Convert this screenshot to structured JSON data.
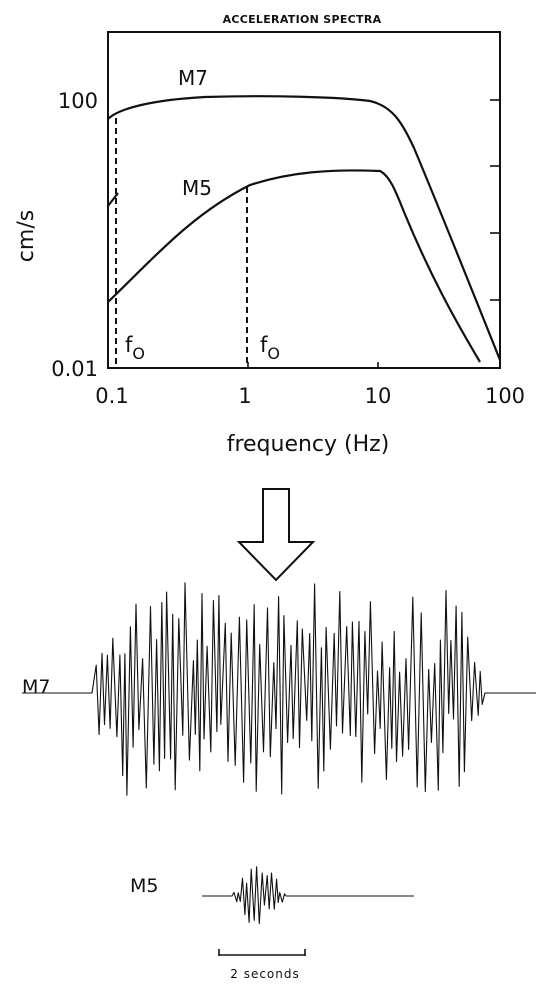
{
  "spectra": {
    "title": "ACCELERATION SPECTRA",
    "y_axis_label": "cm/s",
    "x_axis_label": "frequency (Hz)",
    "y_ticks": [
      "100",
      "0.01"
    ],
    "x_ticks": [
      "0.1",
      "1",
      "10",
      "100"
    ],
    "corner_label": "f",
    "corner_subscript": "O",
    "curves": [
      {
        "label": "M7",
        "corner_frequency_hz": 0.11
      },
      {
        "label": "M5",
        "corner_frequency_hz": 1.1
      }
    ]
  },
  "seismograms": {
    "traces": [
      {
        "label": "M7"
      },
      {
        "label": "M5"
      }
    ],
    "scale_bar_label": "2 seconds"
  }
}
